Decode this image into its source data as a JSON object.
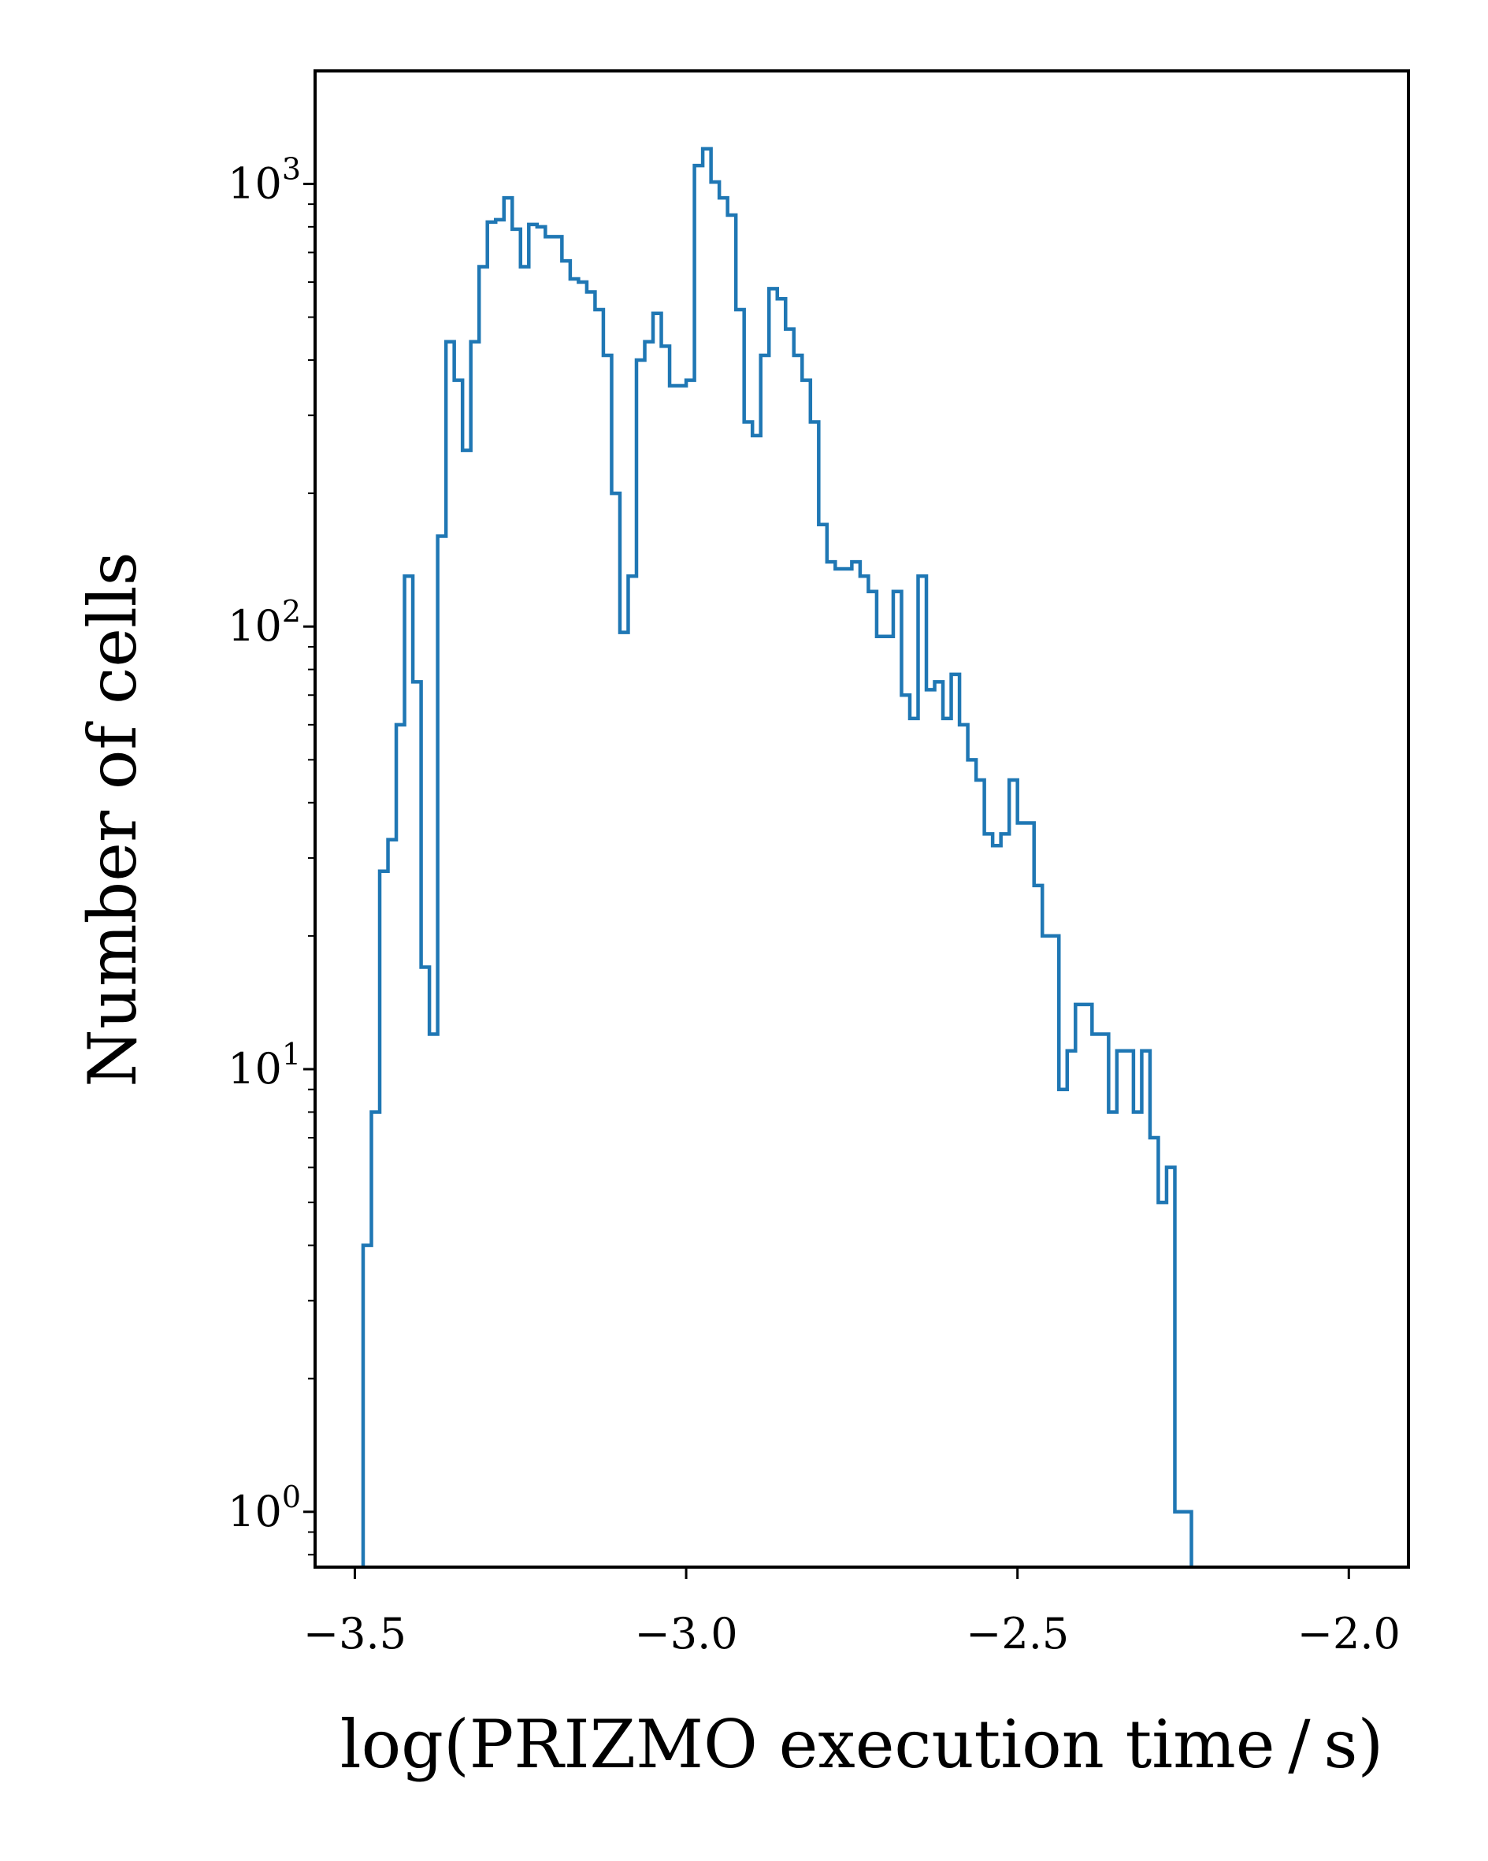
{
  "chart_data": {
    "type": "histogram",
    "title": "",
    "xlabel": "log(PRIZMO execution time / s)",
    "ylabel": "Number of cells",
    "xscale": "linear",
    "yscale": "log",
    "xlim": [
      -3.56,
      -1.91
    ],
    "ylim": [
      0.75,
      1800
    ],
    "grid": false,
    "legend": "none",
    "x_ticks": [
      -3.5,
      -3.0,
      -2.5,
      -2.0
    ],
    "x_tick_labels": [
      "−3.5",
      "−3.0",
      "−2.5",
      "−2.0"
    ],
    "y_ticks": [
      1,
      10,
      100,
      1000
    ],
    "y_tick_labels": [
      {
        "base": "10",
        "exp": "0"
      },
      {
        "base": "10",
        "exp": "1"
      },
      {
        "base": "10",
        "exp": "2"
      },
      {
        "base": "10",
        "exp": "3"
      }
    ],
    "series": [
      {
        "color": "#1f77b4",
        "bin_start": -3.4875,
        "bin_width": 0.0125,
        "counts": [
          4,
          8,
          28,
          33,
          60,
          130,
          75,
          17,
          12,
          160,
          440,
          360,
          250,
          440,
          650,
          820,
          830,
          930,
          790,
          650,
          810,
          800,
          760,
          760,
          670,
          610,
          600,
          570,
          520,
          410,
          200,
          97,
          130,
          400,
          440,
          510,
          430,
          350,
          350,
          360,
          1100,
          1200,
          1010,
          930,
          850,
          520,
          290,
          270,
          410,
          580,
          550,
          470,
          410,
          360,
          290,
          170,
          140,
          135,
          135,
          140,
          130,
          120,
          95,
          95,
          120,
          70,
          62,
          130,
          72,
          75,
          62,
          78,
          60,
          50,
          45,
          34,
          32,
          34,
          45,
          36,
          36,
          26,
          20,
          20,
          9,
          11,
          14,
          14,
          12,
          12,
          8,
          11,
          11,
          8,
          11,
          7,
          5,
          6,
          1,
          1,
          0
        ]
      }
    ]
  }
}
